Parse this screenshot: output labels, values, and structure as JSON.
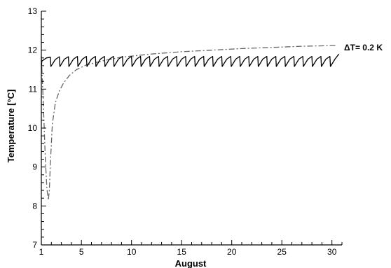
{
  "chart_data": {
    "type": "line",
    "title": "",
    "xlabel": "August",
    "ylabel": "Temperature [°C]",
    "xlim": [
      1,
      31
    ],
    "ylim": [
      7,
      13
    ],
    "xticks": [
      1,
      5,
      10,
      15,
      20,
      25,
      30
    ],
    "yticks": [
      7,
      8,
      9,
      10,
      11,
      12,
      13
    ],
    "grid": false,
    "legend": "none",
    "annotation": "ΔT= 0.2 K",
    "series": [
      {
        "style": "dash-dot",
        "color": "#666666",
        "x": [
          1.0,
          1.2,
          1.4,
          1.55,
          1.7,
          1.8,
          1.9,
          2.1,
          2.4,
          2.8,
          3.2,
          3.8,
          4.5,
          5.5,
          7,
          9,
          12,
          15,
          18,
          21,
          24,
          27,
          29,
          30,
          30.5
        ],
        "y": [
          11.85,
          10.6,
          9.2,
          8.45,
          8.15,
          8.4,
          9.1,
          10.1,
          10.65,
          10.95,
          11.15,
          11.35,
          11.5,
          11.62,
          11.72,
          11.82,
          11.9,
          11.96,
          12.0,
          12.04,
          12.07,
          12.1,
          12.11,
          12.12,
          12.12
        ]
      },
      {
        "style": "solid",
        "color": "#000000",
        "x": [
          1.0,
          1.05,
          1.5,
          1.9,
          1.95,
          2.4,
          2.8,
          2.85,
          3.3,
          3.7,
          3.75,
          4.2,
          4.6,
          4.65,
          5.1,
          5.5,
          5.55,
          6.0,
          6.4,
          6.45,
          6.9,
          7.3,
          7.35,
          7.8,
          8.2,
          8.25,
          8.7,
          9.1,
          9.15,
          9.6,
          10.0,
          10.05,
          10.5,
          10.9,
          10.95,
          11.4,
          11.8,
          11.85,
          12.3,
          12.7,
          12.75,
          13.2,
          13.6,
          13.65,
          14.1,
          14.5,
          14.55,
          15.0,
          15.4,
          15.45,
          15.9,
          16.3,
          16.35,
          16.8,
          17.2,
          17.25,
          17.7,
          18.1,
          18.15,
          18.6,
          19.0,
          19.05,
          19.5,
          19.9,
          19.95,
          20.4,
          20.8,
          20.85,
          21.3,
          21.7,
          21.75,
          22.2,
          22.6,
          22.65,
          23.1,
          23.5,
          23.55,
          24.0,
          24.4,
          24.45,
          24.9,
          25.3,
          25.35,
          25.8,
          26.2,
          26.25,
          26.7,
          27.1,
          27.15,
          27.6,
          28.0,
          28.05,
          28.5,
          28.9,
          28.95,
          29.4,
          29.8,
          29.85,
          30.3,
          30.7
        ],
        "y": [
          11.55,
          11.72,
          11.8,
          11.82,
          11.58,
          11.76,
          11.83,
          11.58,
          11.77,
          11.83,
          11.58,
          11.77,
          11.84,
          11.58,
          11.77,
          11.84,
          11.58,
          11.77,
          11.84,
          11.58,
          11.77,
          11.84,
          11.58,
          11.77,
          11.84,
          11.58,
          11.77,
          11.84,
          11.58,
          11.77,
          11.84,
          11.58,
          11.77,
          11.84,
          11.58,
          11.77,
          11.84,
          11.58,
          11.77,
          11.84,
          11.58,
          11.77,
          11.84,
          11.58,
          11.77,
          11.84,
          11.58,
          11.77,
          11.84,
          11.58,
          11.77,
          11.84,
          11.58,
          11.77,
          11.84,
          11.58,
          11.77,
          11.84,
          11.58,
          11.77,
          11.84,
          11.58,
          11.77,
          11.84,
          11.58,
          11.77,
          11.84,
          11.58,
          11.77,
          11.84,
          11.58,
          11.77,
          11.84,
          11.58,
          11.77,
          11.84,
          11.58,
          11.77,
          11.84,
          11.58,
          11.77,
          11.84,
          11.58,
          11.77,
          11.84,
          11.58,
          11.77,
          11.84,
          11.58,
          11.77,
          11.84,
          11.58,
          11.77,
          11.84,
          11.58,
          11.77,
          11.84,
          11.58,
          11.77,
          11.9
        ]
      }
    ]
  }
}
